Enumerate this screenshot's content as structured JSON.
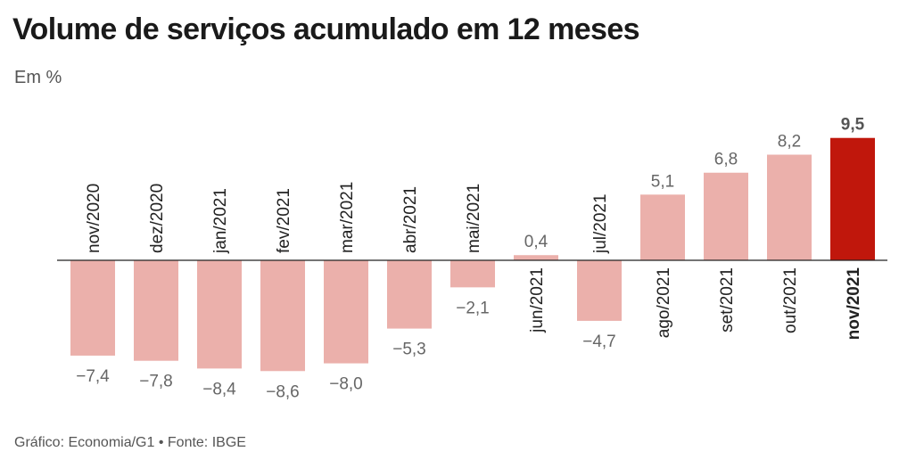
{
  "title": "Volume de serviços acumulado em 12 meses",
  "subtitle": "Em %",
  "source": "Gráfico: Economia/G1 • Fonte: IBGE",
  "colors": {
    "bar": "#ebb0ab",
    "highlight": "#c0170c",
    "axis": "#222222"
  },
  "chart_data": {
    "type": "bar",
    "title": "Volume de serviços acumulado em 12 meses",
    "subtitle": "Em %",
    "categories": [
      "nov/2020",
      "dez/2020",
      "jan/2021",
      "fev/2021",
      "mar/2021",
      "abr/2021",
      "mai/2021",
      "jun/2021",
      "jul/2021",
      "ago/2021",
      "set/2021",
      "out/2021",
      "nov/2021"
    ],
    "values": [
      -7.4,
      -7.8,
      -8.4,
      -8.6,
      -8.0,
      -5.3,
      -2.1,
      0.4,
      -4.7,
      5.1,
      6.8,
      8.2,
      9.5
    ],
    "value_labels": [
      "−7,4",
      "−7,8",
      "−8,4",
      "−8,6",
      "−8,0",
      "−5,3",
      "−2,1",
      "0,4",
      "−4,7",
      "5,1",
      "6,8",
      "8,2",
      "9,5"
    ],
    "highlight_index": 12,
    "xlabel": "",
    "ylabel": "",
    "grid": false,
    "legend": "none"
  }
}
